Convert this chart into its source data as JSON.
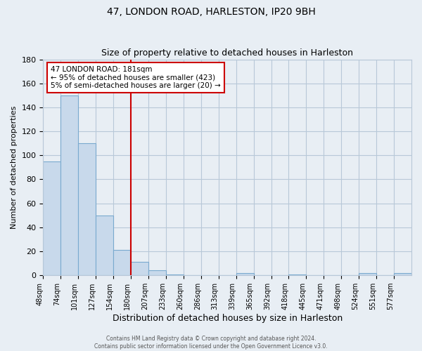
{
  "title": "47, LONDON ROAD, HARLESTON, IP20 9BH",
  "subtitle": "Size of property relative to detached houses in Harleston",
  "xlabel": "Distribution of detached houses by size in Harleston",
  "ylabel": "Number of detached properties",
  "bar_labels": [
    "48sqm",
    "74sqm",
    "101sqm",
    "127sqm",
    "154sqm",
    "180sqm",
    "207sqm",
    "233sqm",
    "260sqm",
    "286sqm",
    "313sqm",
    "339sqm",
    "365sqm",
    "392sqm",
    "418sqm",
    "445sqm",
    "471sqm",
    "498sqm",
    "524sqm",
    "551sqm",
    "577sqm"
  ],
  "bar_values": [
    95,
    150,
    110,
    50,
    21,
    11,
    4,
    1,
    0,
    0,
    0,
    2,
    0,
    0,
    1,
    0,
    0,
    0,
    2,
    0,
    2
  ],
  "bar_color": "#c8d9eb",
  "bar_edge_color": "#7aaacf",
  "vline_color": "#cc0000",
  "annotation_text": "47 LONDON ROAD: 181sqm\n← 95% of detached houses are smaller (423)\n5% of semi-detached houses are larger (20) →",
  "annotation_box_color": "white",
  "annotation_box_edge": "#cc0000",
  "ylim": [
    0,
    180
  ],
  "yticks": [
    0,
    20,
    40,
    60,
    80,
    100,
    120,
    140,
    160,
    180
  ],
  "footer1": "Contains HM Land Registry data © Crown copyright and database right 2024.",
  "footer2": "Contains public sector information licensed under the Open Government Licence v3.0.",
  "bg_color": "#e8eef4",
  "plot_bg_color": "#e8eef4",
  "grid_color": "#b8c8d8"
}
